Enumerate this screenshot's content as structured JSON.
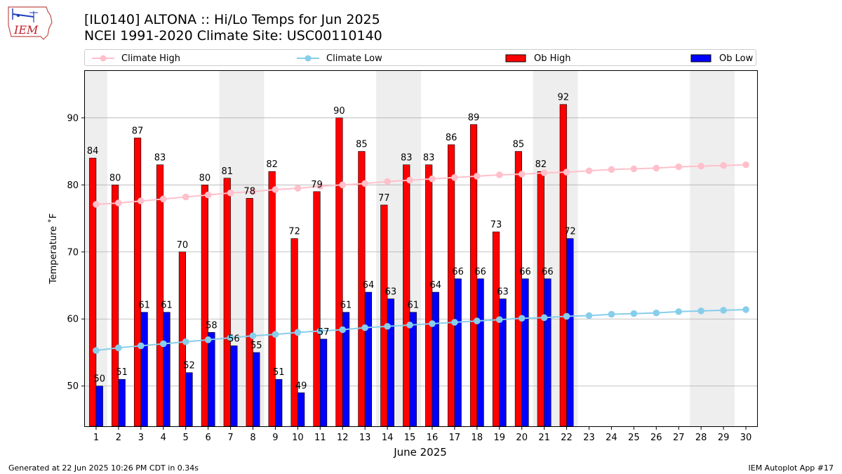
{
  "header": {
    "logo_text": "IEM",
    "title_line1": "[IL0140] ALTONA :: Hi/Lo Temps for Jun 2025",
    "title_line2": "NCEI 1991-2020 Climate Site: USC00110140"
  },
  "footer": {
    "left": "Generated at 22 Jun 2025 10:26 PM CDT in 0.34s",
    "right": "IEM Autoplot App #17"
  },
  "colors": {
    "climate_high": "#ffc0cb",
    "climate_low": "#87ceeb",
    "ob_high": "#ff0000",
    "ob_low": "#0000ff",
    "weekend_band": "#eeeeee",
    "grid": "#b0b0b0"
  },
  "chart_data": {
    "type": "bar",
    "xlabel": "June 2025",
    "ylabel": "Temperature ˚F",
    "ylim": [
      44,
      97
    ],
    "xlim": [
      0.5,
      30.5
    ],
    "yticks": [
      50,
      60,
      70,
      80,
      90
    ],
    "grid": "horizontal",
    "legend_position": "top",
    "days": [
      1,
      2,
      3,
      4,
      5,
      6,
      7,
      8,
      9,
      10,
      11,
      12,
      13,
      14,
      15,
      16,
      17,
      18,
      19,
      20,
      21,
      22,
      23,
      24,
      25,
      26,
      27,
      28,
      29,
      30
    ],
    "shaded_days": [
      1,
      7,
      8,
      14,
      15,
      21,
      22,
      28,
      29
    ],
    "series": [
      {
        "name": "Climate High",
        "kind": "line",
        "values": [
          77.1,
          77.3,
          77.6,
          77.9,
          78.2,
          78.5,
          78.8,
          79.0,
          79.3,
          79.5,
          79.8,
          80.0,
          80.2,
          80.5,
          80.7,
          80.9,
          81.1,
          81.3,
          81.5,
          81.6,
          81.8,
          81.9,
          82.1,
          82.3,
          82.4,
          82.5,
          82.7,
          82.8,
          82.9,
          83.0
        ]
      },
      {
        "name": "Climate Low",
        "kind": "line",
        "values": [
          55.3,
          55.7,
          56.0,
          56.3,
          56.6,
          56.9,
          57.2,
          57.5,
          57.7,
          58.0,
          58.2,
          58.4,
          58.7,
          58.9,
          59.1,
          59.3,
          59.5,
          59.7,
          59.9,
          60.1,
          60.2,
          60.4,
          60.5,
          60.7,
          60.8,
          60.9,
          61.1,
          61.2,
          61.3,
          61.4
        ]
      },
      {
        "name": "Ob High",
        "kind": "bar",
        "values": [
          84,
          80,
          87,
          83,
          70,
          80,
          81,
          78,
          82,
          72,
          79,
          90,
          85,
          77,
          83,
          83,
          86,
          89,
          73,
          85,
          82,
          92
        ]
      },
      {
        "name": "Ob Low",
        "kind": "bar",
        "values": [
          50,
          51,
          61,
          61,
          52,
          58,
          56,
          55,
          51,
          49,
          57,
          61,
          64,
          63,
          61,
          64,
          66,
          66,
          63,
          66,
          66,
          72
        ]
      }
    ]
  }
}
